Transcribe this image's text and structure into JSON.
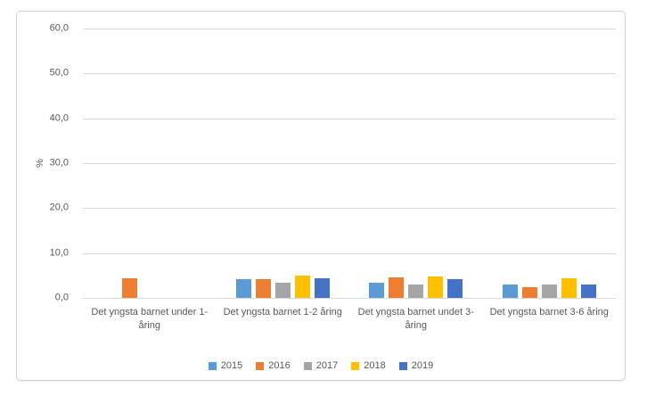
{
  "figure": {
    "background": "#ffffff",
    "border_color": "#d2d2d2",
    "gridline_color": "#d9d9d9",
    "text_color": "#595959"
  },
  "chart_data": {
    "type": "bar",
    "title": "",
    "xlabel": "",
    "ylabel": "%",
    "ylim": [
      0,
      60
    ],
    "grid": true,
    "legend_position": "bottom",
    "y_ticks": [
      "0,0",
      "10,0",
      "20,0",
      "30,0",
      "40,0",
      "50,0",
      "60,0"
    ],
    "categories": [
      "Det yngsta barnet under 1-åring",
      "Det yngsta barnet 1-2 åring",
      "Det yngsta barnet undet 3-åring",
      "Det yngsta barnet 3-6 åring"
    ],
    "series": [
      {
        "name": "2015",
        "color": "#5B9BD5",
        "values": [
          0,
          4.2,
          3.4,
          2.9
        ]
      },
      {
        "name": "2016",
        "color": "#ED7D31",
        "values": [
          4.4,
          4.2,
          4.5,
          2.4
        ]
      },
      {
        "name": "2017",
        "color": "#A5A5A5",
        "values": [
          0,
          3.3,
          3.0,
          2.9
        ]
      },
      {
        "name": "2018",
        "color": "#FFC000",
        "values": [
          0,
          5.0,
          4.8,
          4.4
        ]
      },
      {
        "name": "2019",
        "color": "#4472C4",
        "values": [
          0,
          4.3,
          4.2,
          3.0
        ]
      }
    ]
  }
}
